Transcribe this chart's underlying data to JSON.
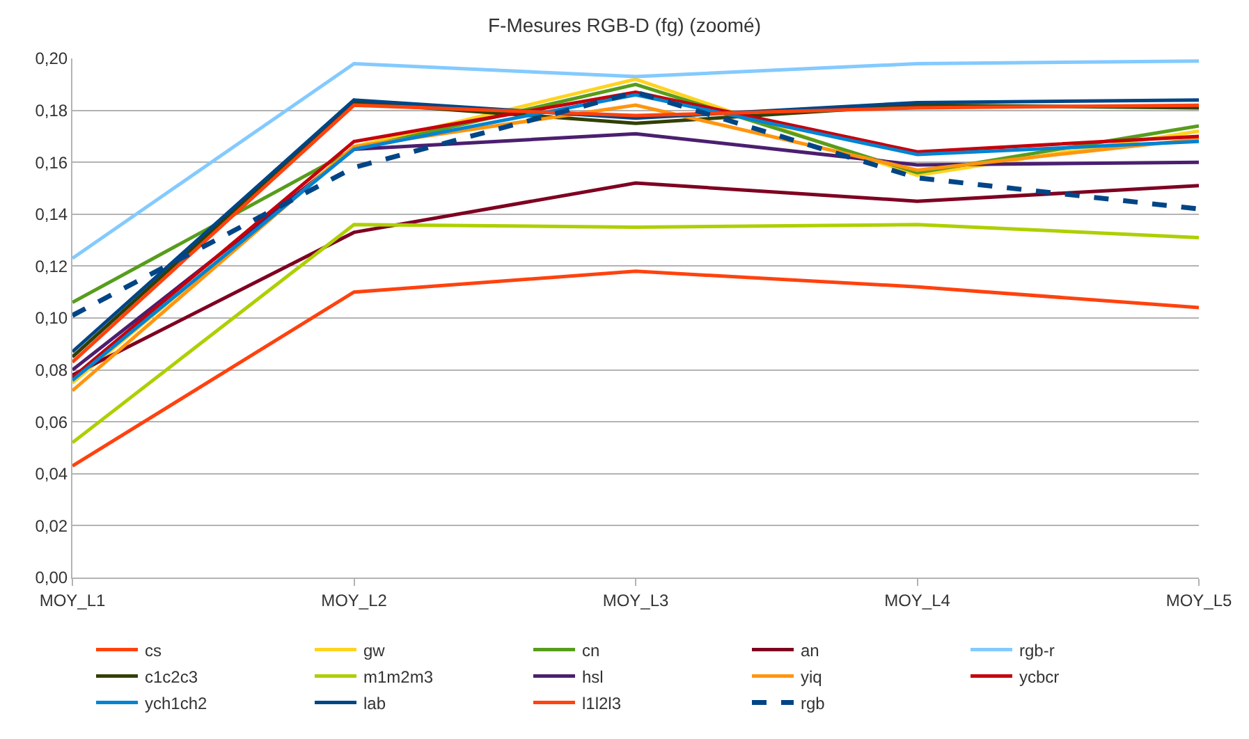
{
  "chart_data": {
    "type": "line",
    "title": "F-Mesures RGB-D (fg) (zoomé)",
    "categories": [
      "MOY_L1",
      "MOY_L2",
      "MOY_L3",
      "MOY_L4",
      "MOY_L5"
    ],
    "ylim": [
      0,
      0.2
    ],
    "yticks": [
      {
        "value": 0,
        "label": "0,00"
      },
      {
        "value": 0.02,
        "label": "0,02"
      },
      {
        "value": 0.04,
        "label": "0,04"
      },
      {
        "value": 0.06,
        "label": "0,06"
      },
      {
        "value": 0.08,
        "label": "0,08"
      },
      {
        "value": 0.1,
        "label": "0,10"
      },
      {
        "value": 0.12,
        "label": "0,12"
      },
      {
        "value": 0.14,
        "label": "0,14"
      },
      {
        "value": 0.16,
        "label": "0,16"
      },
      {
        "value": 0.18,
        "label": "0,18"
      },
      {
        "value": 0.2,
        "label": "0,20"
      }
    ],
    "grid": "y",
    "legend": "bottom",
    "marker": "none",
    "line_style": "solid",
    "series": [
      {
        "name": "cs",
        "color": "#ff420e",
        "values": [
          0.043,
          0.11,
          0.118,
          0.112,
          0.104
        ]
      },
      {
        "name": "gw",
        "color": "#ffd320",
        "values": [
          0.075,
          0.166,
          0.192,
          0.155,
          0.172
        ]
      },
      {
        "name": "cn",
        "color": "#579d1c",
        "values": [
          0.106,
          0.165,
          0.19,
          0.156,
          0.174
        ]
      },
      {
        "name": "an",
        "color": "#7e0021",
        "values": [
          0.078,
          0.133,
          0.152,
          0.145,
          0.151
        ]
      },
      {
        "name": "rgb-r",
        "color": "#83caff",
        "values": [
          0.123,
          0.198,
          0.193,
          0.198,
          0.199
        ]
      },
      {
        "name": "c1c2c3",
        "color": "#314004",
        "values": [
          0.085,
          0.183,
          0.175,
          0.182,
          0.181
        ]
      },
      {
        "name": "m1m2m3",
        "color": "#aecf00",
        "values": [
          0.052,
          0.136,
          0.135,
          0.136,
          0.131
        ]
      },
      {
        "name": "hsl",
        "color": "#4b1f6f",
        "values": [
          0.08,
          0.165,
          0.171,
          0.159,
          0.16
        ]
      },
      {
        "name": "yiq",
        "color": "#ff950e",
        "values": [
          0.072,
          0.166,
          0.182,
          0.157,
          0.169
        ]
      },
      {
        "name": "ycbcr",
        "color": "#c5000b",
        "values": [
          0.077,
          0.168,
          0.187,
          0.164,
          0.17
        ]
      },
      {
        "name": "ych1ch2",
        "color": "#0084d1",
        "values": [
          0.076,
          0.165,
          0.186,
          0.163,
          0.168
        ]
      },
      {
        "name": "lab",
        "color": "#004586",
        "values": [
          0.087,
          0.184,
          0.177,
          0.183,
          0.184
        ]
      },
      {
        "name": "l1l2l3",
        "color": "#ff420e",
        "values": [
          0.083,
          0.182,
          0.178,
          0.181,
          0.182
        ]
      },
      {
        "name": "rgb",
        "color": "#004586",
        "line_style": "dashed",
        "values": [
          0.101,
          0.158,
          0.187,
          0.154,
          0.142
        ]
      }
    ]
  }
}
